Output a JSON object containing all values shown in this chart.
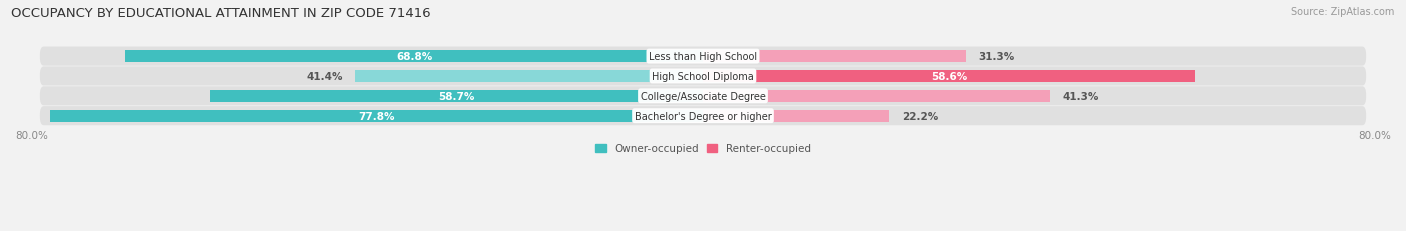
{
  "title": "OCCUPANCY BY EDUCATIONAL ATTAINMENT IN ZIP CODE 71416",
  "source": "Source: ZipAtlas.com",
  "categories": [
    "Less than High School",
    "High School Diploma",
    "College/Associate Degree",
    "Bachelor's Degree or higher"
  ],
  "owner_values": [
    68.8,
    41.4,
    58.7,
    77.8
  ],
  "renter_values": [
    31.3,
    58.6,
    41.3,
    22.2
  ],
  "owner_color": "#40bfbf",
  "owner_color_light": "#88d8d8",
  "renter_color": "#f06080",
  "renter_color_light": "#f4a0b8",
  "xlim_left": -80.0,
  "xlim_right": 80.0,
  "bar_height": 0.62,
  "row_bg_color_even": "#e8e8e8",
  "row_bg_color_odd": "#ebebeb",
  "legend_owner": "Owner-occupied",
  "legend_renter": "Renter-occupied",
  "title_fontsize": 9.5,
  "label_fontsize": 7.5,
  "tick_fontsize": 7.5,
  "source_fontsize": 7
}
